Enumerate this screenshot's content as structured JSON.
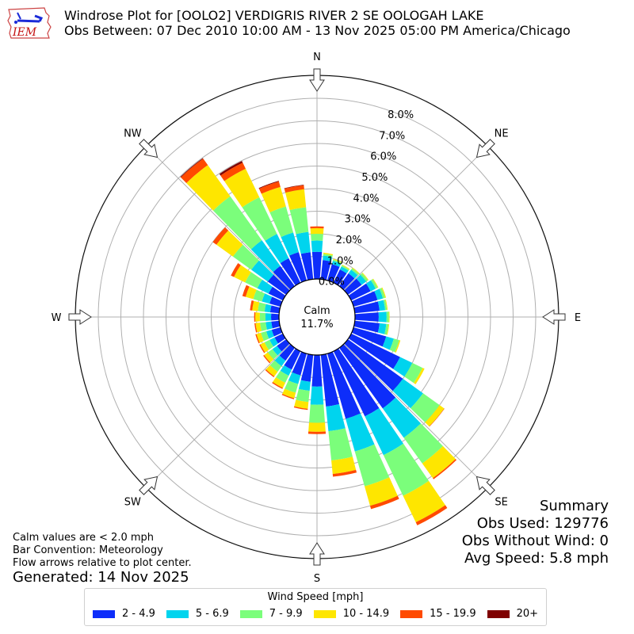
{
  "header": {
    "logo_text": "IEM",
    "title_line1": "Windrose Plot for [OOLO2] VERDIGRIS RIVER 2 SE OOLOGAH LAKE",
    "title_line2": "Obs Between: 07 Dec 2010 10:00 AM - 13 Nov 2025 05:00 PM America/Chicago"
  },
  "center": {
    "calm_label": "Calm",
    "calm_value": "11.7%"
  },
  "notes": {
    "line1": "Calm values are < 2.0 mph",
    "line2": "Bar Convention: Meteorology",
    "line3": "Flow arrows relative to plot center.",
    "generated": "Generated: 14 Nov 2025"
  },
  "summary": {
    "title": "Summary",
    "obs_used": "Obs Used: 129776",
    "obs_without_wind": "Obs Without Wind: 0",
    "avg_speed": "Avg Speed: 5.8 mph"
  },
  "legend": {
    "title": "Wind Speed [mph]",
    "items": [
      {
        "label": "2 - 4.9",
        "color": "#0d2dfa"
      },
      {
        "label": "5 - 6.9",
        "color": "#00d4ee"
      },
      {
        "label": "7 - 9.9",
        "color": "#7bfe7b"
      },
      {
        "label": "10 - 14.9",
        "color": "#fee600"
      },
      {
        "label": "15 - 19.9",
        "color": "#ff4a00"
      },
      {
        "label": "20+",
        "color": "#7f0000"
      }
    ]
  },
  "chart_data": {
    "type": "windrose",
    "title": "Windrose Plot for [OOLO2] VERDIGRIS RIVER 2 SE OOLOGAH LAKE",
    "subtitle": "Obs Between: 07 Dec 2010 10:00 AM - 13 Nov 2025 05:00 PM America/Chicago",
    "calm_percent": 11.7,
    "radial_ticks": [
      "0.0%",
      "1.0%",
      "2.0%",
      "3.0%",
      "4.0%",
      "5.0%",
      "6.0%",
      "7.0%",
      "8.0%"
    ],
    "radial_max": 9.0,
    "compass_labels": [
      "N",
      "NE",
      "E",
      "SE",
      "S",
      "SW",
      "W",
      "NW"
    ],
    "speed_bins": [
      "2 - 4.9",
      "5 - 6.9",
      "7 - 9.9",
      "10 - 14.9",
      "15 - 19.9",
      "20+"
    ],
    "colors": [
      "#0d2dfa",
      "#00d4ee",
      "#7bfe7b",
      "#fee600",
      "#ff4a00",
      "#7f0000"
    ],
    "directions_deg": [
      0,
      10,
      20,
      30,
      40,
      50,
      60,
      70,
      80,
      90,
      100,
      110,
      120,
      130,
      140,
      150,
      160,
      170,
      180,
      190,
      200,
      210,
      220,
      230,
      240,
      250,
      260,
      270,
      280,
      290,
      300,
      310,
      320,
      330,
      340,
      350
    ],
    "values": [
      [
        1.2,
        0.5,
        0.3,
        0.25,
        0.08,
        0.0
      ],
      [
        0.85,
        0.2,
        0.08,
        0.05,
        0.0,
        0.0
      ],
      [
        0.75,
        0.15,
        0.06,
        0.03,
        0.0,
        0.0
      ],
      [
        0.65,
        0.15,
        0.06,
        0.03,
        0.0,
        0.0
      ],
      [
        0.7,
        0.2,
        0.08,
        0.03,
        0.0,
        0.0
      ],
      [
        0.75,
        0.25,
        0.1,
        0.03,
        0.0,
        0.0
      ],
      [
        0.95,
        0.25,
        0.1,
        0.03,
        0.0,
        0.0
      ],
      [
        1.1,
        0.25,
        0.1,
        0.04,
        0.0,
        0.0
      ],
      [
        1.1,
        0.25,
        0.08,
        0.03,
        0.0,
        0.0
      ],
      [
        1.05,
        0.35,
        0.1,
        0.03,
        0.0,
        0.0
      ],
      [
        1.1,
        0.3,
        0.1,
        0.03,
        0.0,
        0.0
      ],
      [
        1.5,
        0.35,
        0.25,
        0.05,
        0.0,
        0.0
      ],
      [
        2.4,
        0.6,
        0.5,
        0.1,
        0.0,
        0.0
      ],
      [
        3.0,
        1.1,
        0.9,
        0.25,
        0.02,
        0.0
      ],
      [
        3.3,
        1.6,
        1.4,
        0.8,
        0.06,
        0.0
      ],
      [
        3.2,
        1.9,
        2.0,
        1.3,
        0.15,
        0.0
      ],
      [
        3.0,
        1.5,
        1.6,
        0.9,
        0.15,
        0.0
      ],
      [
        2.3,
        1.1,
        1.3,
        0.6,
        0.12,
        0.0
      ],
      [
        1.4,
        0.8,
        0.8,
        0.4,
        0.1,
        0.0
      ],
      [
        1.2,
        0.4,
        0.5,
        0.3,
        0.05,
        0.0
      ],
      [
        1.0,
        0.4,
        0.4,
        0.25,
        0.05,
        0.0
      ],
      [
        0.9,
        0.3,
        0.35,
        0.25,
        0.05,
        0.0
      ],
      [
        0.7,
        0.3,
        0.3,
        0.25,
        0.05,
        0.0
      ],
      [
        0.5,
        0.25,
        0.25,
        0.2,
        0.05,
        0.0
      ],
      [
        0.4,
        0.25,
        0.25,
        0.2,
        0.05,
        0.0
      ],
      [
        0.4,
        0.25,
        0.25,
        0.2,
        0.05,
        0.0
      ],
      [
        0.35,
        0.25,
        0.25,
        0.2,
        0.05,
        0.0
      ],
      [
        0.35,
        0.25,
        0.25,
        0.2,
        0.05,
        0.0
      ],
      [
        0.4,
        0.25,
        0.3,
        0.25,
        0.1,
        0.0
      ],
      [
        0.5,
        0.35,
        0.4,
        0.35,
        0.15,
        0.0
      ],
      [
        0.7,
        0.55,
        0.6,
        0.55,
        0.15,
        0.0
      ],
      [
        1.0,
        0.9,
        1.0,
        0.9,
        0.2,
        0.0
      ],
      [
        1.1,
        1.4,
        2.4,
        1.7,
        0.35,
        0.03
      ],
      [
        1.2,
        1.2,
        1.8,
        1.4,
        0.3,
        0.08
      ],
      [
        1.3,
        0.9,
        1.2,
        0.9,
        0.25,
        0.03
      ],
      [
        1.2,
        0.9,
        1.1,
        0.8,
        0.18,
        0.02
      ]
    ]
  }
}
